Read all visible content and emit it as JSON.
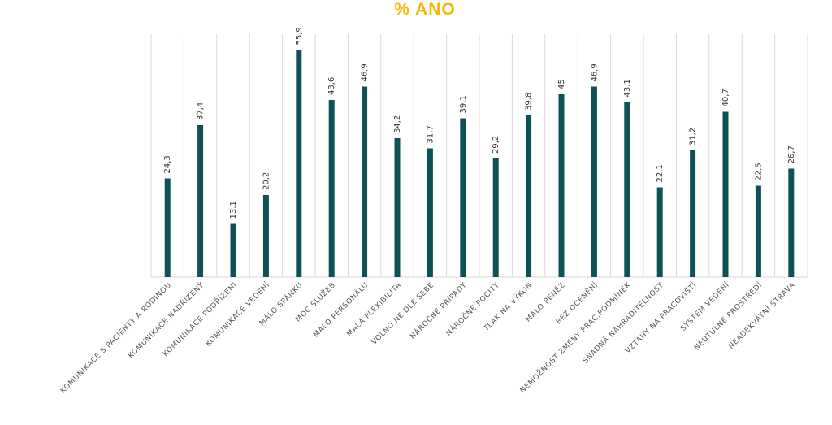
{
  "chart_data": {
    "type": "bar",
    "title": "% ANO",
    "categories": [
      "KOMUNIKACE S PACIENTY A RODINOU",
      "KOMUNIKACE NADŘÍZENÝ",
      "KOMUNIKACE PODŘÍZENÍ",
      "KOMUNIKACE VEDENÍ",
      "MÁLO SPÁNKU",
      "MOC SLUŽEB",
      "MÁLO PERSONÁLU",
      "MALÁ FLEXIBILITA",
      "VOLNO NE DLE SEBE",
      "NÁROČNÉ PŘÍPADY",
      "NÁROČNÉ POCITY",
      "TLAK NA VÝKON",
      "MÁLO PENĚZ",
      "BEZ OCENĚNÍ",
      "NEMOŽNOST ZMĚNY PRAC.PODMÍNEK",
      "SNADNÁ NAHRADITELNOST",
      "VZTAHY NA PRACOVIŠTI",
      "SYSTÉM VEDENÍ",
      "NEÚTULNÉ PROSTŘEDÍ",
      "NEADEKVÁTNÍ STRAVA"
    ],
    "values": [
      24.3,
      37.4,
      13.1,
      20.2,
      55.9,
      43.6,
      46.9,
      34.2,
      31.7,
      39.1,
      29.2,
      39.8,
      45,
      46.9,
      43.1,
      22.1,
      31.2,
      40.7,
      22.5,
      26.7
    ],
    "value_labels": [
      "24,3",
      "37,4",
      "13,1",
      "20,2",
      "55,9",
      "43,6",
      "46,9",
      "34,2",
      "31,7",
      "39,1",
      "29,2",
      "39,8",
      "45",
      "46,9",
      "43,1",
      "22,1",
      "31,2",
      "40,7",
      "22,5",
      "26,7"
    ],
    "ylim": [
      0,
      60
    ],
    "grid": "vertical",
    "legend": "none",
    "colors": {
      "bar": "#0e5257",
      "title": "#f5b800",
      "grid": "#d9d9d9"
    }
  }
}
